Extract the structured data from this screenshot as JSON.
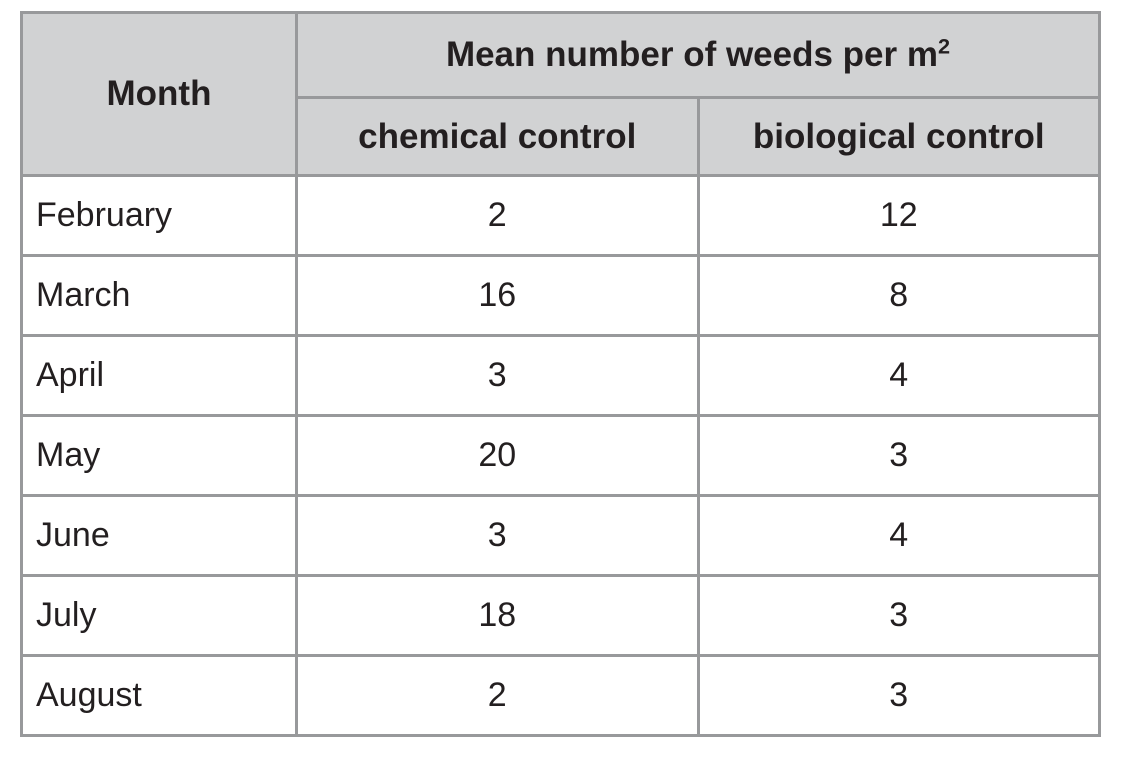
{
  "table": {
    "month_header": "Month",
    "group_header": "Mean number of weeds per m",
    "group_header_superscript": "2",
    "sub_headers": [
      "chemical control",
      "biological control"
    ],
    "rows": [
      {
        "month": "February",
        "chemical": "2",
        "biological": "12"
      },
      {
        "month": "March",
        "chemical": "16",
        "biological": "8"
      },
      {
        "month": "April",
        "chemical": "3",
        "biological": "4"
      },
      {
        "month": "May",
        "chemical": "20",
        "biological": "3"
      },
      {
        "month": "June",
        "chemical": "3",
        "biological": "4"
      },
      {
        "month": "July",
        "chemical": "18",
        "biological": "3"
      },
      {
        "month": "August",
        "chemical": "2",
        "biological": "3"
      }
    ]
  },
  "colors": {
    "header_background": "#d1d2d3",
    "grid_border": "#98999b",
    "text": "#231f20",
    "body_background": "#ffffff"
  },
  "chart_data": {
    "type": "table",
    "title": "Mean number of weeds per m²",
    "categories": [
      "February",
      "March",
      "April",
      "May",
      "June",
      "July",
      "August"
    ],
    "series": [
      {
        "name": "chemical control",
        "values": [
          2,
          16,
          3,
          20,
          3,
          18,
          2
        ]
      },
      {
        "name": "biological control",
        "values": [
          12,
          8,
          4,
          3,
          4,
          3,
          3
        ]
      }
    ]
  }
}
